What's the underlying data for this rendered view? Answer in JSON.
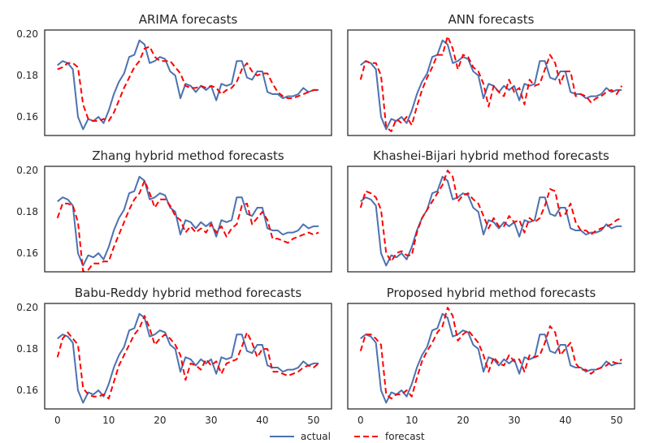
{
  "chart_data": {
    "type": "line",
    "layout": "3x2 grid of subplots, shared axes",
    "x": [
      0,
      1,
      2,
      3,
      4,
      5,
      6,
      7,
      8,
      9,
      10,
      11,
      12,
      13,
      14,
      15,
      16,
      17,
      18,
      19,
      20,
      21,
      22,
      23,
      24,
      25,
      26,
      27,
      28,
      29,
      30,
      31,
      32,
      33,
      34,
      35,
      36,
      37,
      38,
      39,
      40,
      41,
      42,
      43,
      44,
      45,
      46,
      47,
      48,
      49,
      50,
      51
    ],
    "xlim": [
      -2.5,
      53.5
    ],
    "ylim": [
      0.151,
      0.202
    ],
    "xticks": [
      0,
      10,
      20,
      30,
      40,
      50
    ],
    "yticks": [
      0.16,
      0.18,
      0.2
    ],
    "ytick_labels": [
      "0.16",
      "0.18",
      "0.20"
    ],
    "colors": {
      "actual": "#4c72b0",
      "forecast": "#ff0000"
    },
    "legend": {
      "placement": "bottom-center",
      "entries": [
        "actual",
        "forecast"
      ]
    },
    "actual": [
      0.185,
      0.187,
      0.186,
      0.183,
      0.16,
      0.154,
      0.159,
      0.158,
      0.16,
      0.157,
      0.163,
      0.171,
      0.177,
      0.181,
      0.189,
      0.19,
      0.197,
      0.195,
      0.186,
      0.187,
      0.189,
      0.188,
      0.182,
      0.18,
      0.169,
      0.176,
      0.175,
      0.172,
      0.175,
      0.173,
      0.175,
      0.168,
      0.176,
      0.175,
      0.176,
      0.187,
      0.187,
      0.179,
      0.178,
      0.182,
      0.182,
      0.172,
      0.171,
      0.171,
      0.169,
      0.17,
      0.17,
      0.171,
      0.174,
      0.172,
      0.173,
      0.173
    ],
    "panels": [
      {
        "title": "ARIMA forecasts",
        "forecast": [
          0.183,
          0.184,
          0.186,
          0.186,
          0.184,
          0.166,
          0.159,
          0.158,
          0.158,
          0.159,
          0.158,
          0.162,
          0.168,
          0.174,
          0.179,
          0.184,
          0.187,
          0.193,
          0.194,
          0.189,
          0.187,
          0.187,
          0.187,
          0.184,
          0.181,
          0.175,
          0.174,
          0.174,
          0.175,
          0.174,
          0.175,
          0.174,
          0.171,
          0.173,
          0.174,
          0.177,
          0.183,
          0.186,
          0.182,
          0.18,
          0.181,
          0.181,
          0.176,
          0.172,
          0.17,
          0.169,
          0.169,
          0.17,
          0.171,
          0.172,
          0.173,
          0.173
        ]
      },
      {
        "title": "ANN forecasts",
        "forecast": [
          0.178,
          0.187,
          0.186,
          0.186,
          0.18,
          0.155,
          0.153,
          0.159,
          0.157,
          0.16,
          0.156,
          0.165,
          0.173,
          0.179,
          0.184,
          0.19,
          0.19,
          0.199,
          0.193,
          0.183,
          0.19,
          0.189,
          0.184,
          0.182,
          0.176,
          0.165,
          0.175,
          0.172,
          0.17,
          0.178,
          0.172,
          0.174,
          0.166,
          0.178,
          0.175,
          0.176,
          0.183,
          0.19,
          0.186,
          0.176,
          0.182,
          0.182,
          0.17,
          0.171,
          0.17,
          0.167,
          0.169,
          0.17,
          0.172,
          0.173,
          0.171,
          0.175
        ]
      },
      {
        "title": "Zhang hybrid method forecasts",
        "forecast": [
          0.177,
          0.184,
          0.184,
          0.183,
          0.175,
          0.151,
          0.152,
          0.155,
          0.155,
          0.156,
          0.156,
          0.163,
          0.169,
          0.175,
          0.181,
          0.186,
          0.189,
          0.195,
          0.189,
          0.182,
          0.186,
          0.186,
          0.183,
          0.178,
          0.176,
          0.17,
          0.173,
          0.17,
          0.172,
          0.17,
          0.174,
          0.17,
          0.173,
          0.168,
          0.172,
          0.174,
          0.183,
          0.184,
          0.174,
          0.177,
          0.18,
          0.176,
          0.167,
          0.167,
          0.166,
          0.165,
          0.167,
          0.168,
          0.169,
          0.17,
          0.169,
          0.17
        ]
      },
      {
        "title": "Khashei-Bijari hybrid method forecasts",
        "forecast": [
          0.182,
          0.19,
          0.189,
          0.187,
          0.181,
          0.16,
          0.156,
          0.16,
          0.161,
          0.159,
          0.159,
          0.17,
          0.177,
          0.181,
          0.185,
          0.189,
          0.193,
          0.2,
          0.197,
          0.185,
          0.188,
          0.189,
          0.186,
          0.184,
          0.178,
          0.172,
          0.177,
          0.173,
          0.173,
          0.178,
          0.175,
          0.176,
          0.17,
          0.177,
          0.175,
          0.177,
          0.183,
          0.191,
          0.19,
          0.178,
          0.179,
          0.184,
          0.175,
          0.171,
          0.171,
          0.169,
          0.171,
          0.172,
          0.173,
          0.174,
          0.176,
          0.177
        ]
      },
      {
        "title": "Babu-Reddy hybrid method forecasts",
        "forecast": [
          0.176,
          0.185,
          0.188,
          0.185,
          0.182,
          0.161,
          0.158,
          0.157,
          0.157,
          0.158,
          0.156,
          0.164,
          0.172,
          0.177,
          0.182,
          0.187,
          0.19,
          0.196,
          0.19,
          0.182,
          0.185,
          0.187,
          0.185,
          0.182,
          0.177,
          0.165,
          0.173,
          0.172,
          0.17,
          0.175,
          0.172,
          0.174,
          0.168,
          0.173,
          0.174,
          0.175,
          0.181,
          0.188,
          0.183,
          0.176,
          0.18,
          0.18,
          0.169,
          0.169,
          0.168,
          0.167,
          0.168,
          0.169,
          0.171,
          0.172,
          0.171,
          0.173
        ]
      },
      {
        "title": "Proposed hybrid method forecasts",
        "forecast": [
          0.179,
          0.187,
          0.187,
          0.185,
          0.182,
          0.158,
          0.156,
          0.158,
          0.158,
          0.16,
          0.157,
          0.166,
          0.174,
          0.179,
          0.183,
          0.188,
          0.191,
          0.2,
          0.196,
          0.184,
          0.187,
          0.189,
          0.186,
          0.183,
          0.177,
          0.169,
          0.176,
          0.173,
          0.172,
          0.177,
          0.174,
          0.175,
          0.169,
          0.177,
          0.176,
          0.177,
          0.183,
          0.191,
          0.188,
          0.177,
          0.18,
          0.183,
          0.173,
          0.17,
          0.17,
          0.168,
          0.17,
          0.171,
          0.172,
          0.174,
          0.173,
          0.175
        ]
      }
    ]
  }
}
